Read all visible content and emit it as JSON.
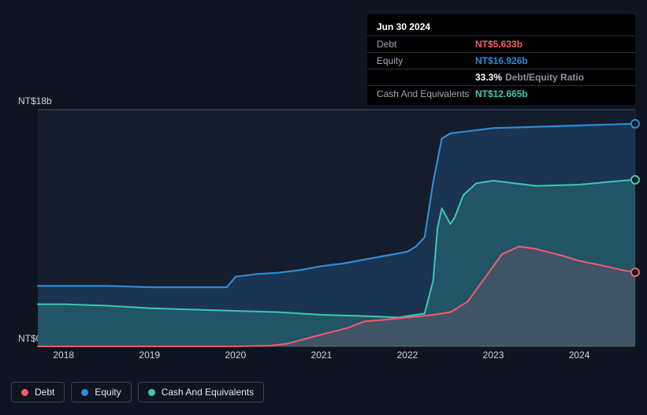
{
  "tooltip": {
    "date": "Jun 30 2024",
    "rows": [
      {
        "label": "Debt",
        "value": "NT$5.633b",
        "color": "#f45b69"
      },
      {
        "label": "Equity",
        "value": "NT$16.926b",
        "color": "#2d8cd6"
      },
      {
        "label": "",
        "value": "33.3%",
        "unit": "Debt/Equity Ratio",
        "color": "#ffffff"
      },
      {
        "label": "Cash And Equivalents",
        "value": "NT$12.665b",
        "color": "#3cc9b0"
      }
    ]
  },
  "chart": {
    "type": "area",
    "background_color": "#0e1420",
    "plot_background_color": "#151c2c",
    "grid_color": "#4a5262",
    "axis_label_color": "#d0d4dc",
    "ymin": 0,
    "ymax": 18,
    "ytick_labels": [
      {
        "v": 0,
        "label": "NT$0"
      },
      {
        "v": 18,
        "label": "NT$18b"
      }
    ],
    "x_years": [
      2018,
      2019,
      2020,
      2021,
      2022,
      2023,
      2024
    ],
    "xmin": 2017.7,
    "xmax": 2024.65,
    "series": [
      {
        "name": "Equity",
        "color": "#2d8cd6",
        "fill": "rgba(45,140,214,0.22)",
        "line_width": 2.2,
        "points": [
          [
            2017.7,
            4.6
          ],
          [
            2018.0,
            4.6
          ],
          [
            2018.5,
            4.6
          ],
          [
            2019.0,
            4.5
          ],
          [
            2019.5,
            4.5
          ],
          [
            2019.9,
            4.5
          ],
          [
            2020.0,
            5.3
          ],
          [
            2020.25,
            5.5
          ],
          [
            2020.5,
            5.6
          ],
          [
            2020.75,
            5.8
          ],
          [
            2021.0,
            6.1
          ],
          [
            2021.25,
            6.3
          ],
          [
            2021.5,
            6.6
          ],
          [
            2021.75,
            6.9
          ],
          [
            2022.0,
            7.2
          ],
          [
            2022.1,
            7.6
          ],
          [
            2022.2,
            8.3
          ],
          [
            2022.3,
            12.5
          ],
          [
            2022.4,
            15.8
          ],
          [
            2022.5,
            16.2
          ],
          [
            2022.75,
            16.4
          ],
          [
            2023.0,
            16.6
          ],
          [
            2023.5,
            16.7
          ],
          [
            2024.0,
            16.8
          ],
          [
            2024.5,
            16.9
          ],
          [
            2024.65,
            16.93
          ]
        ]
      },
      {
        "name": "Cash And Equivalents",
        "color": "#3cc9b0",
        "fill": "rgba(60,201,176,0.22)",
        "line_width": 2.0,
        "points": [
          [
            2017.7,
            3.2
          ],
          [
            2018.0,
            3.2
          ],
          [
            2018.5,
            3.1
          ],
          [
            2019.0,
            2.9
          ],
          [
            2019.5,
            2.8
          ],
          [
            2020.0,
            2.7
          ],
          [
            2020.5,
            2.6
          ],
          [
            2021.0,
            2.4
          ],
          [
            2021.5,
            2.3
          ],
          [
            2021.9,
            2.2
          ],
          [
            2022.0,
            2.3
          ],
          [
            2022.1,
            2.4
          ],
          [
            2022.2,
            2.5
          ],
          [
            2022.3,
            5.0
          ],
          [
            2022.35,
            9.0
          ],
          [
            2022.4,
            10.5
          ],
          [
            2022.5,
            9.3
          ],
          [
            2022.55,
            9.8
          ],
          [
            2022.65,
            11.5
          ],
          [
            2022.8,
            12.4
          ],
          [
            2023.0,
            12.6
          ],
          [
            2023.5,
            12.2
          ],
          [
            2024.0,
            12.3
          ],
          [
            2024.5,
            12.6
          ],
          [
            2024.65,
            12.67
          ]
        ]
      },
      {
        "name": "Debt",
        "color": "#f45b69",
        "fill": "rgba(244,91,105,0.15)",
        "line_width": 2.0,
        "points": [
          [
            2017.7,
            0.0
          ],
          [
            2019.0,
            0.0
          ],
          [
            2020.0,
            0.0
          ],
          [
            2020.4,
            0.05
          ],
          [
            2020.6,
            0.2
          ],
          [
            2021.0,
            0.9
          ],
          [
            2021.3,
            1.4
          ],
          [
            2021.5,
            1.9
          ],
          [
            2021.7,
            2.0
          ],
          [
            2022.0,
            2.2
          ],
          [
            2022.3,
            2.4
          ],
          [
            2022.5,
            2.6
          ],
          [
            2022.7,
            3.4
          ],
          [
            2022.9,
            5.2
          ],
          [
            2023.1,
            7.0
          ],
          [
            2023.3,
            7.6
          ],
          [
            2023.5,
            7.4
          ],
          [
            2023.8,
            6.9
          ],
          [
            2024.0,
            6.5
          ],
          [
            2024.3,
            6.1
          ],
          [
            2024.5,
            5.8
          ],
          [
            2024.65,
            5.63
          ]
        ]
      }
    ],
    "end_markers": [
      {
        "series": "Equity",
        "x": 2024.65,
        "y": 16.93,
        "color": "#2d8cd6"
      },
      {
        "series": "Cash And Equivalents",
        "x": 2024.65,
        "y": 12.67,
        "color": "#3cc9b0"
      },
      {
        "series": "Debt",
        "x": 2024.65,
        "y": 5.63,
        "color": "#f45b69"
      }
    ]
  },
  "legend": [
    {
      "label": "Debt",
      "color": "#f45b69"
    },
    {
      "label": "Equity",
      "color": "#2d8cd6"
    },
    {
      "label": "Cash And Equivalents",
      "color": "#3cc9b0"
    }
  ]
}
